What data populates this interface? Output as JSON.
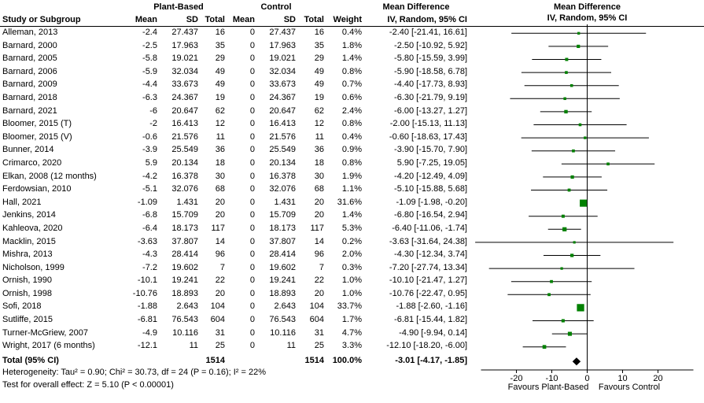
{
  "header": {
    "group1": "Plant-Based",
    "group2": "Control",
    "md_label": "Mean Difference",
    "study_col": "Study or Subgroup",
    "mean": "Mean",
    "sd": "SD",
    "total": "Total",
    "weight": "Weight",
    "ci_method": "IV, Random, 95% CI"
  },
  "footnotes": {
    "heterogeneity": "Heterogeneity: Tau² = 0.90; Chi² = 30.73, df = 24 (P = 0.16); I² = 22%",
    "overall": "Test for overall effect: Z = 5.10 (P < 0.00001)"
  },
  "colors": {
    "square": "#008000",
    "diamond": "#000000",
    "line": "#000000"
  },
  "chart_data": {
    "type": "forest",
    "title": "Mean Difference, IV, Random, 95% CI",
    "x_ticks": [
      -20,
      -10,
      0,
      10,
      20
    ],
    "x_range": [
      -33,
      33
    ],
    "favours_left": "Favours Plant-Based",
    "favours_right": "Favours Control",
    "studies": [
      {
        "name": "Alleman, 2013",
        "mean_pb": "-2.4",
        "sd_pb": "27.437",
        "n_pb": "16",
        "mean_c": "0",
        "sd_c": "27.437",
        "n_c": "16",
        "weight": "0.4%",
        "ci_text": "-2.40 [-21.41, 16.61]",
        "est": -2.4,
        "lcl": -21.41,
        "ucl": 16.61,
        "w": 0.4
      },
      {
        "name": "Barnard, 2000",
        "mean_pb": "-2.5",
        "sd_pb": "17.963",
        "n_pb": "35",
        "mean_c": "0",
        "sd_c": "17.963",
        "n_c": "35",
        "weight": "1.8%",
        "ci_text": "-2.50 [-10.92, 5.92]",
        "est": -2.5,
        "lcl": -10.92,
        "ucl": 5.92,
        "w": 1.8
      },
      {
        "name": "Barnard, 2005",
        "mean_pb": "-5.8",
        "sd_pb": "19.021",
        "n_pb": "29",
        "mean_c": "0",
        "sd_c": "19.021",
        "n_c": "29",
        "weight": "1.4%",
        "ci_text": "-5.80 [-15.59, 3.99]",
        "est": -5.8,
        "lcl": -15.59,
        "ucl": 3.99,
        "w": 1.4
      },
      {
        "name": "Barnard, 2006",
        "mean_pb": "-5.9",
        "sd_pb": "32.034",
        "n_pb": "49",
        "mean_c": "0",
        "sd_c": "32.034",
        "n_c": "49",
        "weight": "0.8%",
        "ci_text": "-5.90 [-18.58, 6.78]",
        "est": -5.9,
        "lcl": -18.58,
        "ucl": 6.78,
        "w": 0.8
      },
      {
        "name": "Barnard, 2009",
        "mean_pb": "-4.4",
        "sd_pb": "33.673",
        "n_pb": "49",
        "mean_c": "0",
        "sd_c": "33.673",
        "n_c": "49",
        "weight": "0.7%",
        "ci_text": "-4.40 [-17.73, 8.93]",
        "est": -4.4,
        "lcl": -17.73,
        "ucl": 8.93,
        "w": 0.7
      },
      {
        "name": "Barnard, 2018",
        "mean_pb": "-6.3",
        "sd_pb": "24.367",
        "n_pb": "19",
        "mean_c": "0",
        "sd_c": "24.367",
        "n_c": "19",
        "weight": "0.6%",
        "ci_text": "-6.30 [-21.79, 9.19]",
        "est": -6.3,
        "lcl": -21.79,
        "ucl": 9.19,
        "w": 0.6
      },
      {
        "name": "Barnard, 2021",
        "mean_pb": "-6",
        "sd_pb": "20.647",
        "n_pb": "62",
        "mean_c": "0",
        "sd_c": "20.647",
        "n_c": "62",
        "weight": "2.4%",
        "ci_text": "-6.00 [-13.27, 1.27]",
        "est": -6.0,
        "lcl": -13.27,
        "ucl": 1.27,
        "w": 2.4
      },
      {
        "name": "Bloomer, 2015 (T)",
        "mean_pb": "-2",
        "sd_pb": "16.413",
        "n_pb": "12",
        "mean_c": "0",
        "sd_c": "16.413",
        "n_c": "12",
        "weight": "0.8%",
        "ci_text": "-2.00 [-15.13, 11.13]",
        "est": -2.0,
        "lcl": -15.13,
        "ucl": 11.13,
        "w": 0.8
      },
      {
        "name": "Bloomer, 2015 (V)",
        "mean_pb": "-0.6",
        "sd_pb": "21.576",
        "n_pb": "11",
        "mean_c": "0",
        "sd_c": "21.576",
        "n_c": "11",
        "weight": "0.4%",
        "ci_text": "-0.60 [-18.63, 17.43]",
        "est": -0.6,
        "lcl": -18.63,
        "ucl": 17.43,
        "w": 0.4
      },
      {
        "name": "Bunner, 2014",
        "mean_pb": "-3.9",
        "sd_pb": "25.549",
        "n_pb": "36",
        "mean_c": "0",
        "sd_c": "25.549",
        "n_c": "36",
        "weight": "0.9%",
        "ci_text": "-3.90 [-15.70, 7.90]",
        "est": -3.9,
        "lcl": -15.7,
        "ucl": 7.9,
        "w": 0.9
      },
      {
        "name": "Crimarco, 2020",
        "mean_pb": "5.9",
        "sd_pb": "20.134",
        "n_pb": "18",
        "mean_c": "0",
        "sd_c": "20.134",
        "n_c": "18",
        "weight": "0.8%",
        "ci_text": "5.90 [-7.25, 19.05]",
        "est": 5.9,
        "lcl": -7.25,
        "ucl": 19.05,
        "w": 0.8
      },
      {
        "name": "Elkan, 2008 (12 months)",
        "mean_pb": "-4.2",
        "sd_pb": "16.378",
        "n_pb": "30",
        "mean_c": "0",
        "sd_c": "16.378",
        "n_c": "30",
        "weight": "1.9%",
        "ci_text": "-4.20 [-12.49, 4.09]",
        "est": -4.2,
        "lcl": -12.49,
        "ucl": 4.09,
        "w": 1.9
      },
      {
        "name": "Ferdowsian, 2010",
        "mean_pb": "-5.1",
        "sd_pb": "32.076",
        "n_pb": "68",
        "mean_c": "0",
        "sd_c": "32.076",
        "n_c": "68",
        "weight": "1.1%",
        "ci_text": "-5.10 [-15.88, 5.68]",
        "est": -5.1,
        "lcl": -15.88,
        "ucl": 5.68,
        "w": 1.1
      },
      {
        "name": "Hall, 2021",
        "mean_pb": "-1.09",
        "sd_pb": "1.431",
        "n_pb": "20",
        "mean_c": "0",
        "sd_c": "1.431",
        "n_c": "20",
        "weight": "31.6%",
        "ci_text": "-1.09 [-1.98, -0.20]",
        "est": -1.09,
        "lcl": -1.98,
        "ucl": -0.2,
        "w": 31.6
      },
      {
        "name": "Jenkins, 2014",
        "mean_pb": "-6.8",
        "sd_pb": "15.709",
        "n_pb": "20",
        "mean_c": "0",
        "sd_c": "15.709",
        "n_c": "20",
        "weight": "1.4%",
        "ci_text": "-6.80 [-16.54, 2.94]",
        "est": -6.8,
        "lcl": -16.54,
        "ucl": 2.94,
        "w": 1.4
      },
      {
        "name": "Kahleova, 2020",
        "mean_pb": "-6.4",
        "sd_pb": "18.173",
        "n_pb": "117",
        "mean_c": "0",
        "sd_c": "18.173",
        "n_c": "117",
        "weight": "5.3%",
        "ci_text": "-6.40 [-11.06, -1.74]",
        "est": -6.4,
        "lcl": -11.06,
        "ucl": -1.74,
        "w": 5.3
      },
      {
        "name": "Macklin, 2015",
        "mean_pb": "-3.63",
        "sd_pb": "37.807",
        "n_pb": "14",
        "mean_c": "0",
        "sd_c": "37.807",
        "n_c": "14",
        "weight": "0.2%",
        "ci_text": "-3.63 [-31.64, 24.38]",
        "est": -3.63,
        "lcl": -31.64,
        "ucl": 24.38,
        "w": 0.2
      },
      {
        "name": "Mishra, 2013",
        "mean_pb": "-4.3",
        "sd_pb": "28.414",
        "n_pb": "96",
        "mean_c": "0",
        "sd_c": "28.414",
        "n_c": "96",
        "weight": "2.0%",
        "ci_text": "-4.30 [-12.34, 3.74]",
        "est": -4.3,
        "lcl": -12.34,
        "ucl": 3.74,
        "w": 2.0
      },
      {
        "name": "Nicholson, 1999",
        "mean_pb": "-7.2",
        "sd_pb": "19.602",
        "n_pb": "7",
        "mean_c": "0",
        "sd_c": "19.602",
        "n_c": "7",
        "weight": "0.3%",
        "ci_text": "-7.20 [-27.74, 13.34]",
        "est": -7.2,
        "lcl": -27.74,
        "ucl": 13.34,
        "w": 0.3
      },
      {
        "name": "Ornish, 1990",
        "mean_pb": "-10.1",
        "sd_pb": "19.241",
        "n_pb": "22",
        "mean_c": "0",
        "sd_c": "19.241",
        "n_c": "22",
        "weight": "1.0%",
        "ci_text": "-10.10 [-21.47, 1.27]",
        "est": -10.1,
        "lcl": -21.47,
        "ucl": 1.27,
        "w": 1.0
      },
      {
        "name": "Ornish, 1998",
        "mean_pb": "-10.76",
        "sd_pb": "18.893",
        "n_pb": "20",
        "mean_c": "0",
        "sd_c": "18.893",
        "n_c": "20",
        "weight": "1.0%",
        "ci_text": "-10.76 [-22.47, 0.95]",
        "est": -10.76,
        "lcl": -22.47,
        "ucl": 0.95,
        "w": 1.0
      },
      {
        "name": "Sofi, 2018",
        "mean_pb": "-1.88",
        "sd_pb": "2.643",
        "n_pb": "104",
        "mean_c": "0",
        "sd_c": "2.643",
        "n_c": "104",
        "weight": "33.7%",
        "ci_text": "-1.88 [-2.60, -1.16]",
        "est": -1.88,
        "lcl": -2.6,
        "ucl": -1.16,
        "w": 33.7
      },
      {
        "name": "Sutliffe, 2015",
        "mean_pb": "-6.81",
        "sd_pb": "76.543",
        "n_pb": "604",
        "mean_c": "0",
        "sd_c": "76.543",
        "n_c": "604",
        "weight": "1.7%",
        "ci_text": "-6.81 [-15.44, 1.82]",
        "est": -6.81,
        "lcl": -15.44,
        "ucl": 1.82,
        "w": 1.7
      },
      {
        "name": "Turner-McGriew, 2007",
        "mean_pb": "-4.9",
        "sd_pb": "10.116",
        "n_pb": "31",
        "mean_c": "0",
        "sd_c": "10.116",
        "n_c": "31",
        "weight": "4.7%",
        "ci_text": "-4.90 [-9.94, 0.14]",
        "est": -4.9,
        "lcl": -9.94,
        "ucl": 0.14,
        "w": 4.7
      },
      {
        "name": "Wright, 2017 (6 months)",
        "mean_pb": "-12.1",
        "sd_pb": "11",
        "n_pb": "25",
        "mean_c": "0",
        "sd_c": "11",
        "n_c": "25",
        "weight": "3.3%",
        "ci_text": "-12.10 [-18.20, -6.00]",
        "est": -12.1,
        "lcl": -18.2,
        "ucl": -6.0,
        "w": 3.3
      }
    ],
    "total": {
      "label": "Total (95% CI)",
      "n_pb": "1514",
      "n_c": "1514",
      "weight": "100.0%",
      "ci_text": "-3.01 [-4.17, -1.85]",
      "est": -3.01,
      "lcl": -4.17,
      "ucl": -1.85
    }
  }
}
